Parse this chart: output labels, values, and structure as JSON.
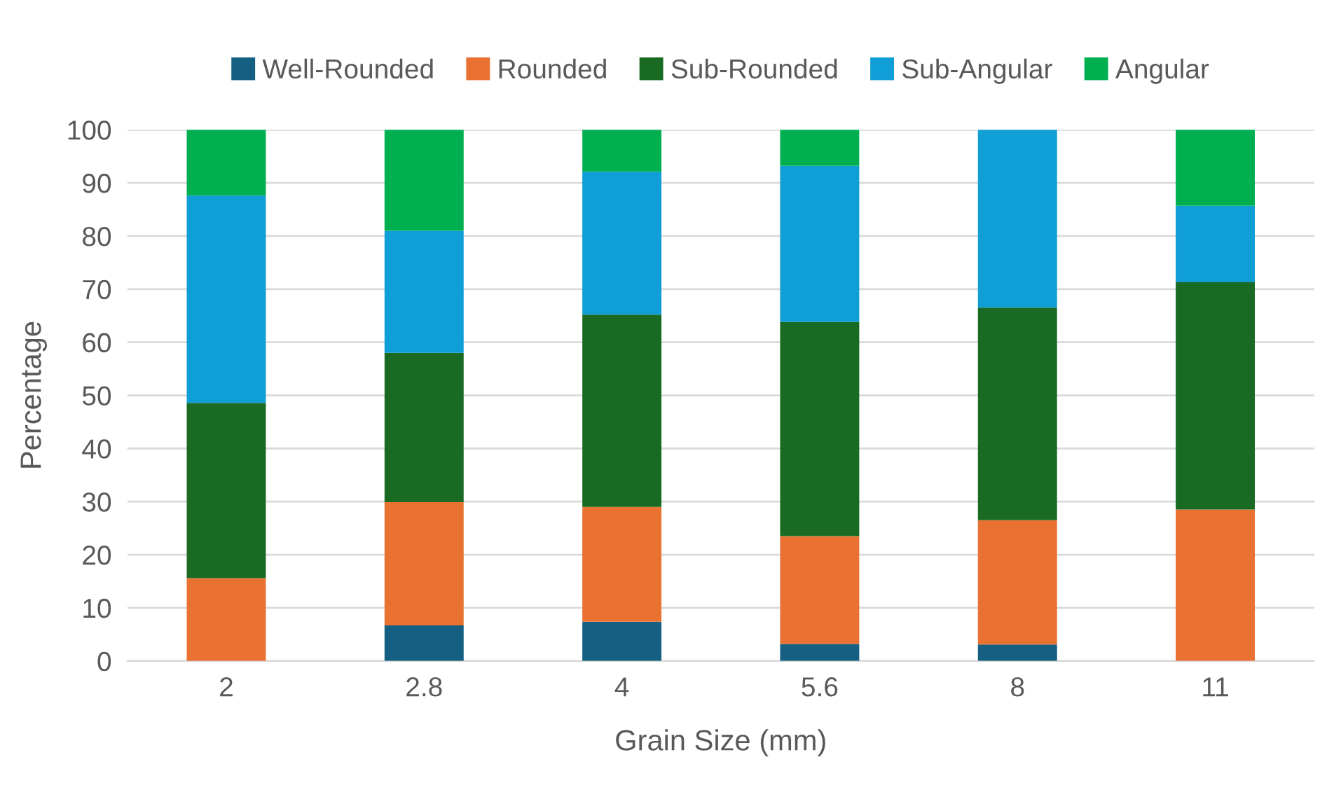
{
  "chart_data": {
    "type": "bar",
    "stacked": true,
    "xlabel": "Grain Size (mm)",
    "ylabel": "Percentage",
    "categories": [
      "2",
      "2.8",
      "4",
      "5.6",
      "8",
      "11"
    ],
    "series": [
      {
        "name": "Well-Rounded",
        "color": "#156082",
        "values": [
          0,
          6.7,
          7.4,
          3.2,
          3.1,
          0
        ]
      },
      {
        "name": "Rounded",
        "color": "#e97132",
        "values": [
          15.6,
          23.2,
          21.6,
          20.3,
          23.4,
          28.5
        ]
      },
      {
        "name": "Sub-Rounded",
        "color": "#196b24",
        "values": [
          33.0,
          28.1,
          36.2,
          40.3,
          40.0,
          42.8
        ]
      },
      {
        "name": "Sub-Angular",
        "color": "#0f9ed5",
        "values": [
          39.0,
          23.0,
          26.9,
          29.4,
          33.5,
          14.4
        ]
      },
      {
        "name": "Angular",
        "color": "#00b050",
        "values": [
          12.4,
          19.0,
          7.9,
          6.8,
          0,
          14.3
        ]
      }
    ],
    "ylim": [
      0,
      100
    ],
    "yticks": [
      0,
      10,
      20,
      30,
      40,
      50,
      60,
      70,
      80,
      90,
      100
    ],
    "grid": "y",
    "legend": "top"
  }
}
